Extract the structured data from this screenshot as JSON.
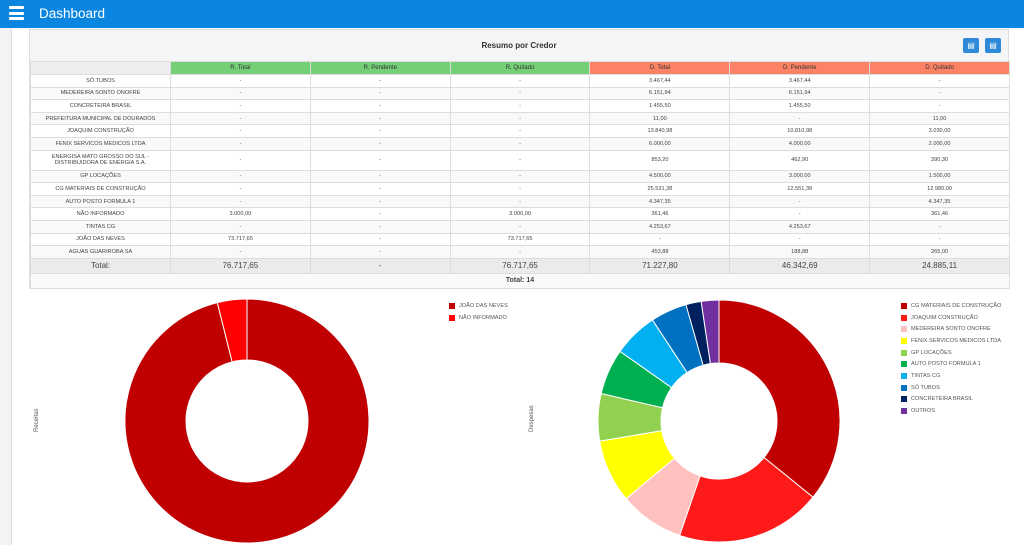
{
  "header": {
    "title": "Dashboard"
  },
  "panel": {
    "title": "Resumo por Credor",
    "export_pdf": "pdf-icon",
    "export_excel": "excel-icon"
  },
  "table": {
    "columns": [
      "",
      "R. Total",
      "R. Pendente",
      "R. Quitado",
      "D. Total",
      "D. Pendente",
      "D. Quitado"
    ],
    "column_colors": {
      "receitas": "#74cf77",
      "despesas": "#fc8265"
    },
    "rows": [
      [
        "SÓ TUBOS",
        "-",
        "-",
        "-",
        "3.467,44",
        "3.467,44",
        "-"
      ],
      [
        "MEDEREIRA SONTO ONOFRE",
        "-",
        "-",
        "-",
        "6.151,94",
        "6.151,94",
        "-"
      ],
      [
        "CONCRETEIRA BRASIL",
        "-",
        "-",
        "-",
        "1.455,50",
        "1.455,50",
        "-"
      ],
      [
        "PREFEITURA MUNICIPAL DE DOURADOS",
        "-",
        "-",
        "-",
        "11,00",
        "-",
        "11,00"
      ],
      [
        "JOAQUIM CONSTRUÇÃO",
        "-",
        "-",
        "-",
        "13.840,98",
        "10.810,98",
        "3.030,00"
      ],
      [
        "FENIX SERVICOS MEDICOS LTDA",
        "-",
        "-",
        "-",
        "6.000,00",
        "4.000,00",
        "2.000,00"
      ],
      [
        "ENERGISA MATO GROSSO DO SUL - DISTRIBUIDORA DE ENERGIA S.A.",
        "-",
        "-",
        "-",
        "853,20",
        "462,90",
        "390,30"
      ],
      [
        "GP LOCAÇÕES",
        "-",
        "-",
        "-",
        "4.500,00",
        "3.000,00",
        "1.500,00"
      ],
      [
        "CG MATERIAIS DE CONSTRUÇÃO",
        "-",
        "-",
        "-",
        "25.531,38",
        "12.551,38",
        "12.980,00"
      ],
      [
        "AUTO POSTO FORMULA 1",
        "-",
        "-",
        "-",
        "4.347,35",
        "-",
        "4.347,35"
      ],
      [
        "NÃO INFORMADO",
        "3.000,00",
        "-",
        "3.000,00",
        "361,46",
        "-",
        "361,46"
      ],
      [
        "TINTAS CG",
        "-",
        "-",
        "-",
        "4.253,67",
        "4.253,67",
        "-"
      ],
      [
        "JOÃO DAS NEVES",
        "73.717,65",
        "-",
        "73.717,65",
        "-",
        "-",
        "-"
      ],
      [
        "AGUAS GUARIROBA SA",
        "-",
        "-",
        "-",
        "453,88",
        "188,88",
        "265,00"
      ]
    ],
    "totals": [
      "Total:",
      "76.717,65",
      "-",
      "76.717,65",
      "71.227,80",
      "46.342,69",
      "24.885,11"
    ],
    "count": "Total: 14"
  },
  "chart_data": [
    {
      "type": "pie",
      "donut": true,
      "ylabel": "Receitas",
      "legend": "top-right",
      "categories": [
        "JOÃO DAS NEVES",
        "NÃO INFORMADO"
      ],
      "values": [
        73717.65,
        3000.0
      ],
      "colors": [
        "#c00000",
        "#ff0000"
      ]
    },
    {
      "type": "pie",
      "donut": true,
      "ylabel": "Despesas",
      "legend": "top-right",
      "categories": [
        "CG MATERIAIS DE CONSTRUÇÃO",
        "JOAQUIM CONSTRUÇÃO",
        "MEDEREIRA SONTO ONOFRE",
        "FENIX SERVICOS MEDICOS LTDA",
        "GP LOCAÇÕES",
        "AUTO POSTO FORMULA 1",
        "TINTAS CG",
        "SÓ TUBOS",
        "CONCRETEIRA BRASIL",
        "OUTROS"
      ],
      "values": [
        25531.38,
        13840.98,
        6151.94,
        6000.0,
        4500.0,
        4347.35,
        4253.67,
        3467.44,
        1455.5,
        1679.54
      ],
      "colors": [
        "#c00000",
        "#ff1a1a",
        "#ffc0c0",
        "#ffff00",
        "#92d050",
        "#00b050",
        "#00b0f0",
        "#0070c0",
        "#002060",
        "#7030a0"
      ]
    }
  ]
}
